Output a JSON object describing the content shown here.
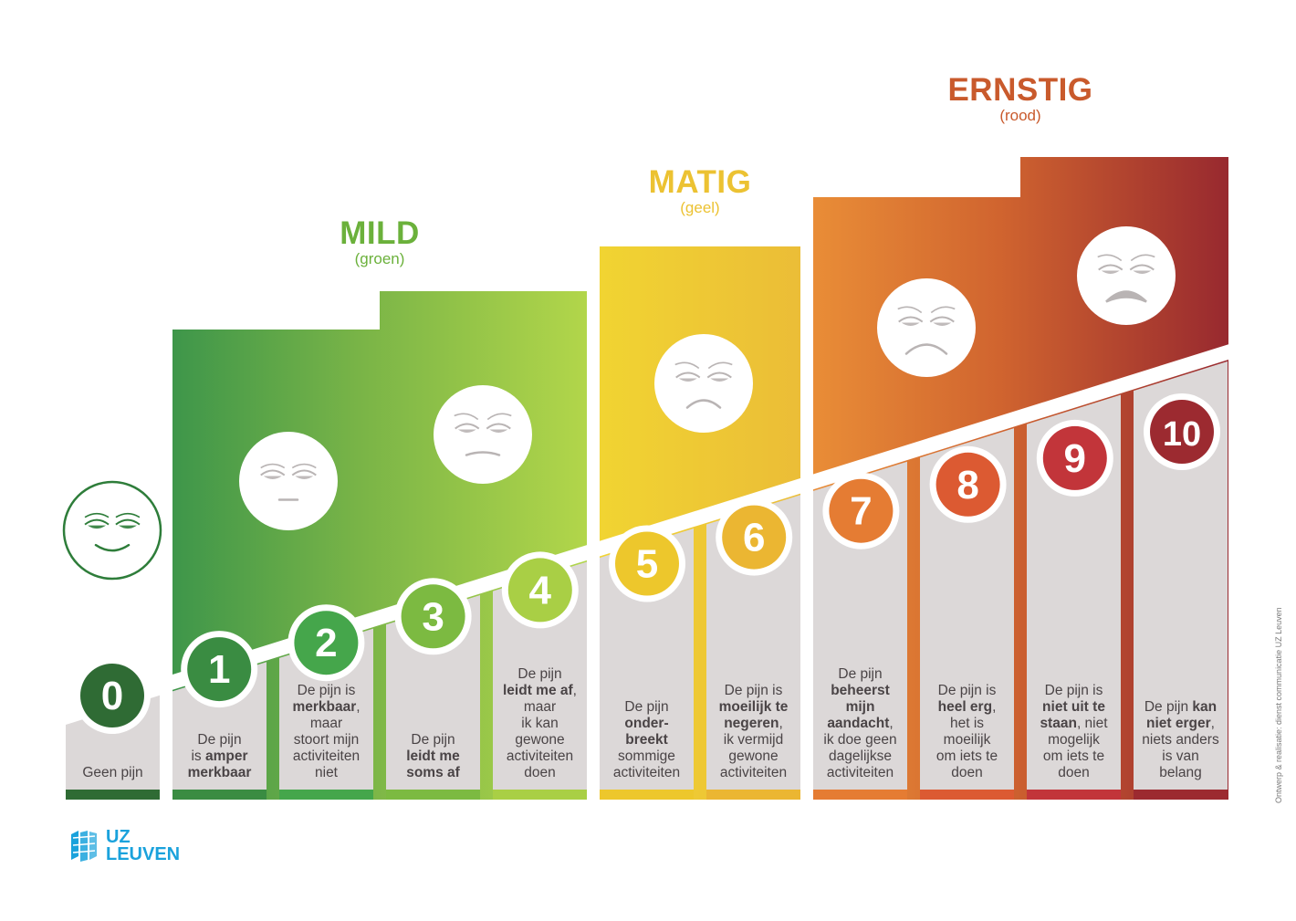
{
  "categories": [
    {
      "title": "MILD",
      "subtitle": "(groen)",
      "color": "#6bb13b"
    },
    {
      "title": "MATIG",
      "subtitle": "(geel)",
      "color": "#ecc232"
    },
    {
      "title": "ERNSTIG",
      "subtitle": "(rood)",
      "color": "#c95a2c"
    }
  ],
  "levels": [
    {
      "number": "0",
      "color": "#2f6b34",
      "desc": [
        [
          "Geen pijn"
        ]
      ]
    },
    {
      "number": "1",
      "color": "#3a8c42",
      "desc": [
        [
          "De pijn"
        ],
        [
          "is ",
          "*amper"
        ],
        [
          "*merkbaar"
        ]
      ]
    },
    {
      "number": "2",
      "color": "#45a64b",
      "desc": [
        [
          "De pijn is"
        ],
        [
          "*merkbaar",
          ","
        ],
        [
          "maar"
        ],
        [
          "stoort mijn"
        ],
        [
          "activiteiten"
        ],
        [
          "niet"
        ]
      ]
    },
    {
      "number": "3",
      "color": "#7cba41",
      "desc": [
        [
          "De pijn"
        ],
        [
          "*leidt me"
        ],
        [
          "*soms af"
        ]
      ]
    },
    {
      "number": "4",
      "color": "#a9cf45",
      "desc": [
        [
          "De pijn"
        ],
        [
          "*leidt me af",
          ","
        ],
        [
          "maar"
        ],
        [
          "ik kan"
        ],
        [
          "gewone"
        ],
        [
          "activiteiten"
        ],
        [
          "doen"
        ]
      ]
    },
    {
      "number": "5",
      "color": "#edc72c",
      "desc": [
        [
          "De pijn"
        ],
        [
          "*onder-"
        ],
        [
          "*breekt"
        ],
        [
          "sommige"
        ],
        [
          "activiteiten"
        ]
      ]
    },
    {
      "number": "6",
      "color": "#ebb632",
      "desc": [
        [
          "De pijn is"
        ],
        [
          "*moeilijk te"
        ],
        [
          "*negeren",
          ","
        ],
        [
          "ik vermijd"
        ],
        [
          "gewone"
        ],
        [
          "activiteiten"
        ]
      ]
    },
    {
      "number": "7",
      "color": "#e57c33",
      "desc": [
        [
          "De pijn"
        ],
        [
          "*beheerst"
        ],
        [
          "*mijn"
        ],
        [
          "*aandacht",
          ","
        ],
        [
          "ik doe geen"
        ],
        [
          "dagelijkse"
        ],
        [
          "activiteiten"
        ]
      ]
    },
    {
      "number": "8",
      "color": "#dc5a32",
      "desc": [
        [
          "De pijn is"
        ],
        [
          "*heel erg",
          ","
        ],
        [
          "het is"
        ],
        [
          "moeilijk"
        ],
        [
          "om iets te"
        ],
        [
          "doen"
        ]
      ]
    },
    {
      "number": "9",
      "color": "#c2353a",
      "desc": [
        [
          "De pijn is"
        ],
        [
          "*niet uit te"
        ],
        [
          "*staan",
          ", niet"
        ],
        [
          "mogelijk"
        ],
        [
          "om iets te"
        ],
        [
          "doen"
        ]
      ]
    },
    {
      "number": "10",
      "color": "#9c2a30",
      "desc": [
        [
          "De pijn ",
          "*kan"
        ],
        [
          "*niet erger",
          ","
        ],
        [
          "niets anders"
        ],
        [
          "is van"
        ],
        [
          "belang"
        ]
      ]
    }
  ],
  "faces": [
    "smile-face",
    "neutral-face",
    "frown-face",
    "sad-face",
    "very-sad-face",
    "crying-face"
  ],
  "credit": "Ontwerp & realisatie: dienst communicatie UZ Leuven",
  "logo": {
    "line1": "UZ",
    "line2": "LEUVEN",
    "color": "#1aa2dc"
  }
}
